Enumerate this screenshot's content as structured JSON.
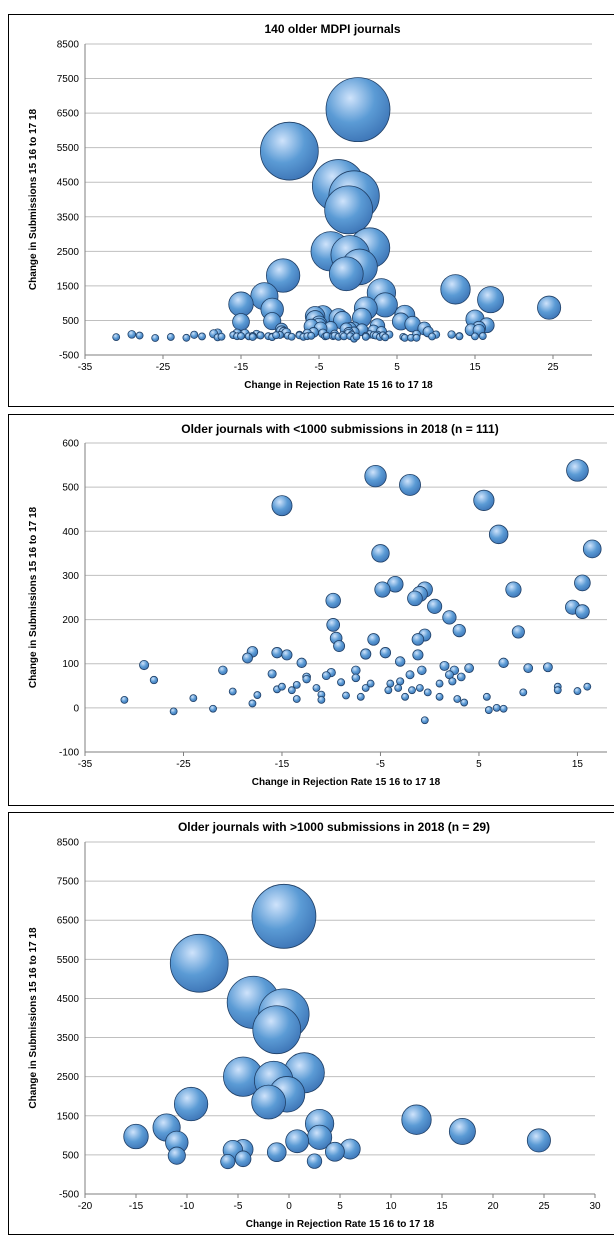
{
  "chart_data": [
    {
      "type": "bubble",
      "title": "140 older MDPI journals",
      "xlabel": "Change in Rejection Rate 15 16 to 17 18",
      "ylabel": "Change in Submissions 15 16 to 17 18",
      "xlim": [
        -35,
        30
      ],
      "ylim": [
        -500,
        8500
      ],
      "xticks": [
        "-35",
        "-25",
        "-15",
        "-5",
        "5",
        "15",
        "25"
      ],
      "yticks": [
        "-500",
        "500",
        "1500",
        "2500",
        "3500",
        "4500",
        "5500",
        "6500",
        "7500",
        "8500"
      ],
      "bubble_color": "#5b9bd5",
      "points": [
        {
          "x": 0,
          "y": 6600,
          "size": 6600
        },
        {
          "x": -8.8,
          "y": 5400,
          "size": 5400
        },
        {
          "x": -2.5,
          "y": 4400,
          "size": 4400
        },
        {
          "x": -0.5,
          "y": 4100,
          "size": 4100
        },
        {
          "x": -1.2,
          "y": 3700,
          "size": 3700
        },
        {
          "x": 1.5,
          "y": 2600,
          "size": 2600
        },
        {
          "x": -3.5,
          "y": 2500,
          "size": 2500
        },
        {
          "x": -1,
          "y": 2400,
          "size": 2400
        },
        {
          "x": 0.2,
          "y": 2050,
          "size": 2050
        },
        {
          "x": -1.5,
          "y": 1850,
          "size": 1850
        },
        {
          "x": -9.6,
          "y": 1800,
          "size": 1800
        },
        {
          "x": 12.5,
          "y": 1400,
          "size": 1400
        },
        {
          "x": 3,
          "y": 1300,
          "size": 1300
        },
        {
          "x": -12,
          "y": 1200,
          "size": 1200
        },
        {
          "x": 17,
          "y": 1100,
          "size": 1100
        },
        {
          "x": 24.5,
          "y": 870,
          "size": 870
        },
        {
          "x": -15,
          "y": 970,
          "size": 970
        },
        {
          "x": 3.5,
          "y": 950,
          "size": 950
        },
        {
          "x": 1,
          "y": 850,
          "size": 850
        },
        {
          "x": -11,
          "y": 820,
          "size": 820
        },
        {
          "x": 6,
          "y": 650,
          "size": 650
        },
        {
          "x": -5.5,
          "y": 620,
          "size": 620
        },
        {
          "x": -4.5,
          "y": 640,
          "size": 640
        },
        {
          "x": 0.5,
          "y": 580,
          "size": 580
        },
        {
          "x": -2.5,
          "y": 570,
          "size": 570
        },
        {
          "x": -11,
          "y": 480,
          "size": 480
        },
        {
          "x": -5,
          "y": 400,
          "size": 400
        },
        {
          "x": -6,
          "y": 330,
          "size": 330
        },
        {
          "x": 2.5,
          "y": 340,
          "size": 340
        },
        {
          "x": -31,
          "y": 18
        },
        {
          "x": -29,
          "y": 97
        },
        {
          "x": -28,
          "y": 63
        },
        {
          "x": -26,
          "y": -8
        },
        {
          "x": -24,
          "y": 22
        },
        {
          "x": -22,
          "y": -2
        },
        {
          "x": -21,
          "y": 85
        },
        {
          "x": -20,
          "y": 37
        },
        {
          "x": -18.5,
          "y": 113
        },
        {
          "x": -18,
          "y": 127
        },
        {
          "x": -18,
          "y": 10
        },
        {
          "x": -17.5,
          "y": 29
        },
        {
          "x": -16,
          "y": 77
        },
        {
          "x": -15.5,
          "y": 42
        },
        {
          "x": -15.5,
          "y": 125
        },
        {
          "x": -15,
          "y": 458
        },
        {
          "x": -15,
          "y": 48
        },
        {
          "x": -14.5,
          "y": 120
        },
        {
          "x": -14,
          "y": 40
        },
        {
          "x": -13.5,
          "y": 52
        },
        {
          "x": -13.5,
          "y": 20
        },
        {
          "x": -13,
          "y": 102
        },
        {
          "x": -12.5,
          "y": 70
        },
        {
          "x": -12.5,
          "y": 65
        },
        {
          "x": -11.5,
          "y": 45
        },
        {
          "x": -11,
          "y": 30
        },
        {
          "x": -11,
          "y": 18
        },
        {
          "x": -10.5,
          "y": 73
        },
        {
          "x": -10,
          "y": 80
        },
        {
          "x": -9.8,
          "y": 243
        },
        {
          "x": -9.8,
          "y": 188
        },
        {
          "x": -9.5,
          "y": 158
        },
        {
          "x": -9.2,
          "y": 140
        },
        {
          "x": -9,
          "y": 58
        },
        {
          "x": -8.5,
          "y": 28
        },
        {
          "x": -7.5,
          "y": 85
        },
        {
          "x": -7.5,
          "y": 68
        },
        {
          "x": -7,
          "y": 25
        },
        {
          "x": -6.5,
          "y": 122
        },
        {
          "x": -6.5,
          "y": 45
        },
        {
          "x": -6,
          "y": 55
        },
        {
          "x": -5.7,
          "y": 155
        },
        {
          "x": -5.5,
          "y": 525
        },
        {
          "x": -5,
          "y": 350
        },
        {
          "x": -4.8,
          "y": 268
        },
        {
          "x": -4.5,
          "y": 125
        },
        {
          "x": -4.2,
          "y": 40
        },
        {
          "x": -4,
          "y": 55
        },
        {
          "x": -3.5,
          "y": 280
        },
        {
          "x": -3.2,
          "y": 45
        },
        {
          "x": -3,
          "y": 105
        },
        {
          "x": -3,
          "y": 60
        },
        {
          "x": -2.5,
          "y": 25
        },
        {
          "x": -2,
          "y": 505
        },
        {
          "x": -2,
          "y": 75
        },
        {
          "x": -1.8,
          "y": 40
        },
        {
          "x": -1.5,
          "y": 248
        },
        {
          "x": -1.2,
          "y": 155
        },
        {
          "x": -1.2,
          "y": 120
        },
        {
          "x": -1,
          "y": 258
        },
        {
          "x": -1,
          "y": 45
        },
        {
          "x": -0.8,
          "y": 85
        },
        {
          "x": -0.5,
          "y": 268
        },
        {
          "x": -0.5,
          "y": 165
        },
        {
          "x": -0.5,
          "y": -28
        },
        {
          "x": -0.2,
          "y": 35
        },
        {
          "x": 0.5,
          "y": 230
        },
        {
          "x": 1,
          "y": 55
        },
        {
          "x": 1,
          "y": 25
        },
        {
          "x": 1.5,
          "y": 95
        },
        {
          "x": 2,
          "y": 205
        },
        {
          "x": 2,
          "y": 75
        },
        {
          "x": 2.3,
          "y": 60
        },
        {
          "x": 2.5,
          "y": 85
        },
        {
          "x": 2.8,
          "y": 20
        },
        {
          "x": 3,
          "y": 175
        },
        {
          "x": 3.2,
          "y": 70
        },
        {
          "x": 3.5,
          "y": 12
        },
        {
          "x": 4,
          "y": 90
        },
        {
          "x": 5.5,
          "y": 470
        },
        {
          "x": 5.8,
          "y": 25
        },
        {
          "x": 6,
          "y": -5
        },
        {
          "x": 6.8,
          "y": 0
        },
        {
          "x": 7,
          "y": 393
        },
        {
          "x": 7.5,
          "y": -2
        },
        {
          "x": 7.5,
          "y": 102
        },
        {
          "x": 8.5,
          "y": 268
        },
        {
          "x": 9,
          "y": 172
        },
        {
          "x": 9.5,
          "y": 35
        },
        {
          "x": 10,
          "y": 90
        },
        {
          "x": 12,
          "y": 92
        },
        {
          "x": 13,
          "y": 48
        },
        {
          "x": 13,
          "y": 40
        },
        {
          "x": 14.5,
          "y": 228
        },
        {
          "x": 15,
          "y": 538
        },
        {
          "x": 15,
          "y": 38
        },
        {
          "x": 15.5,
          "y": 283
        },
        {
          "x": 15.5,
          "y": 218
        },
        {
          "x": 16,
          "y": 48
        },
        {
          "x": 16.5,
          "y": 360
        }
      ]
    },
    {
      "type": "bubble",
      "title": "Older journals with <1000 submissions in 2018 (n = 111)",
      "xlabel": "Change in Rejection Rate 15 16 to 17 18",
      "ylabel": "Change in Submissions 15 16 to 17 18",
      "xlim": [
        -35,
        18
      ],
      "ylim": [
        -100,
        600
      ],
      "xticks": [
        "-35",
        "-25",
        "-15",
        "-5",
        "5",
        "15"
      ],
      "yticks": [
        "-100",
        "0",
        "100",
        "200",
        "300",
        "400",
        "500",
        "600"
      ],
      "bubble_color": "#5b9bd5",
      "points": [
        {
          "x": -31,
          "y": 18
        },
        {
          "x": -29,
          "y": 97
        },
        {
          "x": -28,
          "y": 63
        },
        {
          "x": -26,
          "y": -8
        },
        {
          "x": -24,
          "y": 22
        },
        {
          "x": -22,
          "y": -2
        },
        {
          "x": -21,
          "y": 85
        },
        {
          "x": -20,
          "y": 37
        },
        {
          "x": -18.5,
          "y": 113
        },
        {
          "x": -18,
          "y": 127
        },
        {
          "x": -18,
          "y": 10
        },
        {
          "x": -17.5,
          "y": 29
        },
        {
          "x": -16,
          "y": 77
        },
        {
          "x": -15.5,
          "y": 42
        },
        {
          "x": -15.5,
          "y": 125
        },
        {
          "x": -15,
          "y": 458
        },
        {
          "x": -15,
          "y": 48
        },
        {
          "x": -14.5,
          "y": 120
        },
        {
          "x": -14,
          "y": 40
        },
        {
          "x": -13.5,
          "y": 52
        },
        {
          "x": -13.5,
          "y": 20
        },
        {
          "x": -13,
          "y": 102
        },
        {
          "x": -12.5,
          "y": 70
        },
        {
          "x": -12.5,
          "y": 65
        },
        {
          "x": -11.5,
          "y": 45
        },
        {
          "x": -11,
          "y": 30
        },
        {
          "x": -11,
          "y": 18
        },
        {
          "x": -10.5,
          "y": 73
        },
        {
          "x": -10,
          "y": 80
        },
        {
          "x": -9.8,
          "y": 243
        },
        {
          "x": -9.8,
          "y": 188
        },
        {
          "x": -9.5,
          "y": 158
        },
        {
          "x": -9.2,
          "y": 140
        },
        {
          "x": -9,
          "y": 58
        },
        {
          "x": -8.5,
          "y": 28
        },
        {
          "x": -7.5,
          "y": 85
        },
        {
          "x": -7.5,
          "y": 68
        },
        {
          "x": -7,
          "y": 25
        },
        {
          "x": -6.5,
          "y": 122
        },
        {
          "x": -6.5,
          "y": 45
        },
        {
          "x": -6,
          "y": 55
        },
        {
          "x": -5.7,
          "y": 155
        },
        {
          "x": -5.5,
          "y": 525
        },
        {
          "x": -5,
          "y": 350
        },
        {
          "x": -4.8,
          "y": 268
        },
        {
          "x": -4.5,
          "y": 125
        },
        {
          "x": -4.2,
          "y": 40
        },
        {
          "x": -4,
          "y": 55
        },
        {
          "x": -3.5,
          "y": 280
        },
        {
          "x": -3.2,
          "y": 45
        },
        {
          "x": -3,
          "y": 105
        },
        {
          "x": -3,
          "y": 60
        },
        {
          "x": -2.5,
          "y": 25
        },
        {
          "x": -2,
          "y": 505
        },
        {
          "x": -2,
          "y": 75
        },
        {
          "x": -1.8,
          "y": 40
        },
        {
          "x": -1.5,
          "y": 248
        },
        {
          "x": -1.2,
          "y": 155
        },
        {
          "x": -1.2,
          "y": 120
        },
        {
          "x": -1,
          "y": 258
        },
        {
          "x": -1,
          "y": 45
        },
        {
          "x": -0.8,
          "y": 85
        },
        {
          "x": -0.5,
          "y": 268
        },
        {
          "x": -0.5,
          "y": 165
        },
        {
          "x": -0.5,
          "y": -28
        },
        {
          "x": -0.2,
          "y": 35
        },
        {
          "x": 0.5,
          "y": 230
        },
        {
          "x": 1,
          "y": 55
        },
        {
          "x": 1,
          "y": 25
        },
        {
          "x": 1.5,
          "y": 95
        },
        {
          "x": 2,
          "y": 205
        },
        {
          "x": 2,
          "y": 75
        },
        {
          "x": 2.3,
          "y": 60
        },
        {
          "x": 2.5,
          "y": 85
        },
        {
          "x": 2.8,
          "y": 20
        },
        {
          "x": 3,
          "y": 175
        },
        {
          "x": 3.2,
          "y": 70
        },
        {
          "x": 3.5,
          "y": 12
        },
        {
          "x": 4,
          "y": 90
        },
        {
          "x": 5.5,
          "y": 470
        },
        {
          "x": 5.8,
          "y": 25
        },
        {
          "x": 6,
          "y": -5
        },
        {
          "x": 6.8,
          "y": 0
        },
        {
          "x": 7,
          "y": 393
        },
        {
          "x": 7.5,
          "y": -2
        },
        {
          "x": 7.5,
          "y": 102
        },
        {
          "x": 8.5,
          "y": 268
        },
        {
          "x": 9,
          "y": 172
        },
        {
          "x": 9.5,
          "y": 35
        },
        {
          "x": 10,
          "y": 90
        },
        {
          "x": 12,
          "y": 92
        },
        {
          "x": 13,
          "y": 48
        },
        {
          "x": 13,
          "y": 40
        },
        {
          "x": 14.5,
          "y": 228
        },
        {
          "x": 15,
          "y": 538
        },
        {
          "x": 15,
          "y": 38
        },
        {
          "x": 15.5,
          "y": 283
        },
        {
          "x": 15.5,
          "y": 218
        },
        {
          "x": 16,
          "y": 48
        },
        {
          "x": 16.5,
          "y": 360
        }
      ]
    },
    {
      "type": "bubble",
      "title": "Older journals with >1000 submissions in 2018 (n = 29)",
      "xlabel": "Change in Rejection Rate 15 16 to 17 18",
      "ylabel": "Change in Submissions 15 16 to 17 18",
      "xlim": [
        -20,
        30
      ],
      "ylim": [
        -500,
        8500
      ],
      "xticks": [
        "-20",
        "-15",
        "-10",
        "-5",
        "0",
        "5",
        "10",
        "15",
        "20",
        "25",
        "30"
      ],
      "yticks": [
        "-500",
        "500",
        "1500",
        "2500",
        "3500",
        "4500",
        "5500",
        "6500",
        "7500",
        "8500"
      ],
      "bubble_color": "#5b9bd5",
      "points": [
        {
          "x": -0.5,
          "y": 6600,
          "size": 6600
        },
        {
          "x": -8.8,
          "y": 5400,
          "size": 5400
        },
        {
          "x": -3.5,
          "y": 4400,
          "size": 4400
        },
        {
          "x": -0.5,
          "y": 4100,
          "size": 4100
        },
        {
          "x": -1.2,
          "y": 3700,
          "size": 3700
        },
        {
          "x": 1.5,
          "y": 2600,
          "size": 2600
        },
        {
          "x": -4.5,
          "y": 2500,
          "size": 2500
        },
        {
          "x": -1.5,
          "y": 2400,
          "size": 2400
        },
        {
          "x": -0.2,
          "y": 2050,
          "size": 2050
        },
        {
          "x": -2,
          "y": 1850,
          "size": 1850
        },
        {
          "x": -9.6,
          "y": 1800,
          "size": 1800
        },
        {
          "x": 12.5,
          "y": 1400,
          "size": 1400
        },
        {
          "x": 3,
          "y": 1300,
          "size": 1300
        },
        {
          "x": -12,
          "y": 1200,
          "size": 1200
        },
        {
          "x": 17,
          "y": 1100,
          "size": 1100
        },
        {
          "x": 24.5,
          "y": 870,
          "size": 870
        },
        {
          "x": -15,
          "y": 970,
          "size": 970
        },
        {
          "x": 3,
          "y": 950,
          "size": 950
        },
        {
          "x": 0.8,
          "y": 850,
          "size": 850
        },
        {
          "x": -11,
          "y": 820,
          "size": 820
        },
        {
          "x": 6,
          "y": 650,
          "size": 650
        },
        {
          "x": -5.5,
          "y": 620,
          "size": 620
        },
        {
          "x": -4.5,
          "y": 640,
          "size": 640
        },
        {
          "x": 4.5,
          "y": 580,
          "size": 580
        },
        {
          "x": -1.2,
          "y": 570,
          "size": 570
        },
        {
          "x": -11,
          "y": 480,
          "size": 480
        },
        {
          "x": -4.5,
          "y": 400,
          "size": 400
        },
        {
          "x": -6,
          "y": 330,
          "size": 330
        },
        {
          "x": 2.5,
          "y": 340,
          "size": 340
        }
      ]
    }
  ]
}
